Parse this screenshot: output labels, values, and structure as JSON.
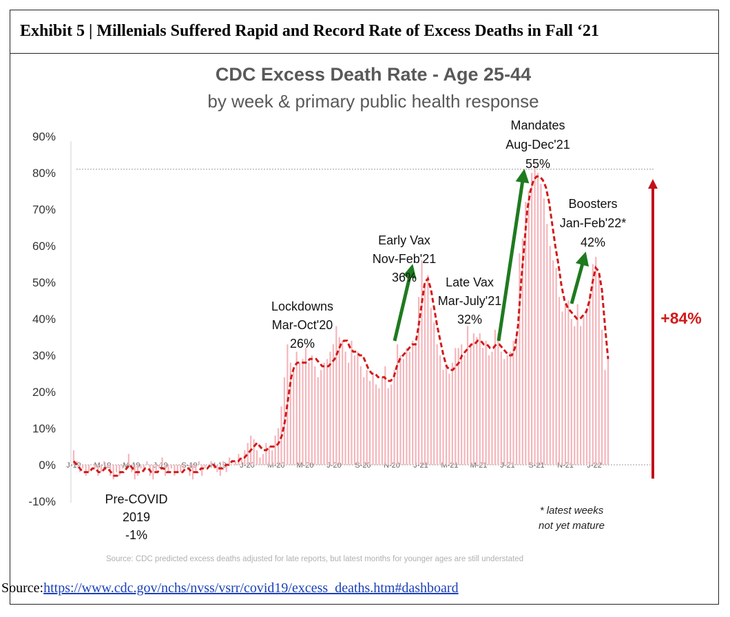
{
  "exhibit": {
    "title": "Exhibit 5 | Millenials Suffered Rapid and Record Rate of Excess Deaths in Fall ‘21"
  },
  "source": {
    "label": "Source:",
    "url": "https://www.cdc.gov/nchs/nvss/vsrr/covid19/excess_deaths.htm#dashboard"
  },
  "colors": {
    "bars": "#f4b6bb",
    "line": "#d11a1a",
    "arrow_green": "#1f7a1f",
    "arrow_red": "#c0101a",
    "increase_text": "#d11a1a"
  },
  "chart_data": {
    "type": "bar",
    "title": "CDC Excess Death Rate - Age 25-44",
    "subtitle": "by week & primary public health response",
    "ylim": [
      -10,
      90
    ],
    "y_ticks": [
      "90%",
      "80%",
      "70%",
      "60%",
      "50%",
      "40%",
      "30%",
      "20%",
      "10%",
      "0%",
      "-10%"
    ],
    "y_tick_values": [
      90,
      80,
      70,
      60,
      50,
      40,
      30,
      20,
      10,
      0,
      -10
    ],
    "x_tick_labels": [
      "J-19",
      "M-19",
      "M-19",
      "J-19",
      "S-19",
      "N-19",
      "J-20",
      "M-20",
      "M-20",
      "J-20",
      "S-20",
      "N-20",
      "J-21",
      "M-21",
      "M-21",
      "J-21",
      "S-21",
      "N-21",
      "J-22"
    ],
    "grid": false,
    "reference_line": 81,
    "series": [
      {
        "type": "bar",
        "values": [
          4,
          1,
          -2,
          -1,
          -3,
          -2,
          0,
          -1,
          -3,
          -2,
          1,
          -1,
          -3,
          -4,
          -2,
          -3,
          -1,
          0,
          3,
          -2,
          -4,
          -3,
          -1,
          -2,
          1,
          -3,
          -4,
          -2,
          -1,
          2,
          -3,
          -2,
          -1,
          -3,
          -2,
          -2,
          -1,
          0,
          -3,
          -4,
          -2,
          1,
          -3,
          -1,
          0,
          1,
          -1,
          -2,
          -3,
          1,
          -2,
          2,
          0,
          1,
          3,
          2,
          4,
          6,
          8,
          7,
          4,
          2,
          3,
          6,
          5,
          4,
          8,
          10,
          16,
          24,
          33,
          28,
          26,
          31,
          28,
          29,
          32,
          28,
          30,
          27,
          24,
          26,
          28,
          29,
          31,
          33,
          38,
          35,
          34,
          31,
          28,
          34,
          30,
          31,
          27,
          24,
          26,
          23,
          25,
          22,
          21,
          24,
          27,
          21,
          22,
          26,
          33,
          30,
          29,
          32,
          31,
          34,
          33,
          46,
          56,
          50,
          52,
          43,
          39,
          33,
          30,
          26,
          27,
          25,
          28,
          32,
          32,
          33,
          30,
          38,
          33,
          36,
          35,
          36,
          32,
          34,
          30,
          31,
          37,
          36,
          31,
          29,
          30,
          31,
          34,
          36,
          58,
          62,
          72,
          75,
          80,
          82,
          80,
          77,
          73,
          66,
          60,
          56,
          54,
          46,
          42,
          44,
          45,
          40,
          38,
          44,
          38,
          41,
          42,
          47,
          55,
          57,
          52,
          37,
          26,
          29
        ]
      },
      {
        "type": "line",
        "values": [
          1,
          0,
          -1,
          -2,
          -2,
          -2,
          -1,
          -1,
          -2,
          -2,
          -1,
          -1,
          -2,
          -3,
          -3,
          -2,
          -2,
          -1,
          0,
          -1,
          -2,
          -2,
          -2,
          -1,
          -1,
          -2,
          -2,
          -2,
          -1,
          -1,
          -2,
          -2,
          -2,
          -2,
          -2,
          -2,
          -1,
          -1,
          -2,
          -2,
          -2,
          -1,
          -1,
          -1,
          0,
          0,
          -1,
          -1,
          -1,
          0,
          0,
          1,
          1,
          1,
          2,
          2,
          3,
          4,
          5,
          6,
          5,
          4,
          4,
          5,
          5,
          5,
          6,
          8,
          12,
          18,
          24,
          27,
          28,
          28,
          28,
          28,
          29,
          29,
          29,
          28,
          27,
          27,
          27,
          28,
          29,
          31,
          33,
          34,
          34,
          32,
          31,
          31,
          30,
          30,
          28,
          26,
          25,
          25,
          24,
          24,
          24,
          23,
          23,
          24,
          27,
          29,
          30,
          31,
          32,
          33,
          33,
          38,
          44,
          50,
          51,
          48,
          43,
          38,
          34,
          30,
          27,
          26,
          26,
          27,
          28,
          30,
          31,
          32,
          33,
          33,
          34,
          34,
          33,
          33,
          32,
          32,
          33,
          33,
          32,
          31,
          30,
          30,
          32,
          38,
          50,
          60,
          70,
          75,
          78,
          79,
          79,
          78,
          76,
          72,
          66,
          60,
          55,
          49,
          45,
          43,
          42,
          41,
          40,
          40,
          41,
          42,
          45,
          50,
          54,
          53,
          48,
          38,
          29
        ]
      }
    ],
    "annotations": [
      {
        "id": "pre",
        "lines": [
          "Pre-COVID",
          "2019",
          "-1%"
        ]
      },
      {
        "id": "lockdowns",
        "lines": [
          "Lockdowns",
          "Mar-Oct'20",
          "26%"
        ]
      },
      {
        "id": "early",
        "lines": [
          "Early Vax",
          "Nov-Feb'21",
          "36%"
        ]
      },
      {
        "id": "late",
        "lines": [
          "Late Vax",
          "Mar-July'21",
          "32%"
        ]
      },
      {
        "id": "mandates",
        "lines": [
          "Mandates",
          "Aug-Dec'21",
          "55%"
        ]
      },
      {
        "id": "boosters",
        "lines": [
          "Boosters",
          "Jan-Feb'22*",
          "42%"
        ]
      }
    ],
    "increase_label": "+84%",
    "footnote": [
      "* latest weeks",
      "not yet mature"
    ],
    "chart_source": "Source: CDC predicted excess deaths adjusted for late reports, but latest months for younger ages are still understated"
  }
}
